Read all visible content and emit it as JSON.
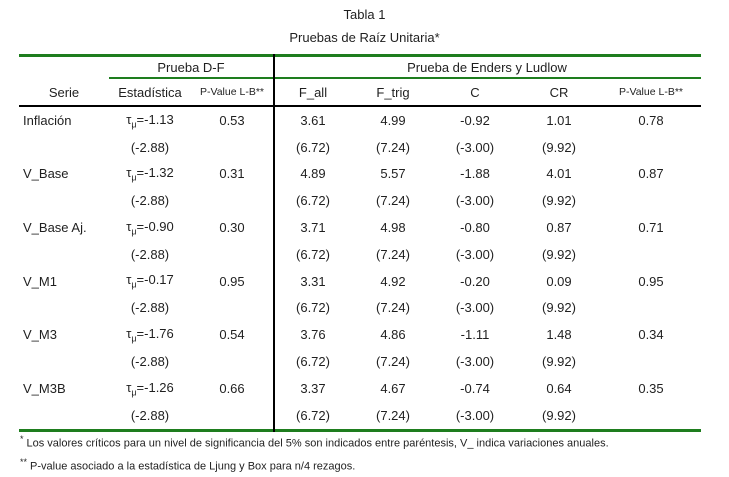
{
  "title": "Tabla 1",
  "subtitle": "Pruebas de Raíz Unitaria*",
  "labels": {
    "tau": "τ",
    "mu": "μ"
  },
  "header": {
    "serie": "Serie",
    "group_df": "Prueba D-F",
    "group_el": "Prueba de Enders y Ludlow",
    "estadistica": "Estadística",
    "pvalue_lb_df": "P-Value L-B**",
    "f_all": "F_all",
    "f_trig": "F_trig",
    "c": "C",
    "cr": "CR",
    "pvalue_lb_el": "P-Value L-B**"
  },
  "table": {
    "rows": [
      {
        "serie": "Inflación",
        "stat": "=-1.13",
        "pvalue_lb_df": "0.53",
        "f_all": "3.61",
        "f_trig": "4.99",
        "c": "-0.92",
        "cr": "1.01",
        "pvalue_lb_el": "0.78",
        "crit_stat": "(-2.88)",
        "crit_f_all": "(6.72)",
        "crit_f_trig": "(7.24)",
        "crit_c": "(-3.00)",
        "crit_cr": "(9.92)"
      },
      {
        "serie": "V_Base",
        "stat": "=-1.32",
        "pvalue_lb_df": "0.31",
        "f_all": "4.89",
        "f_trig": "5.57",
        "c": "-1.88",
        "cr": "4.01",
        "pvalue_lb_el": "0.87",
        "crit_stat": "(-2.88)",
        "crit_f_all": "(6.72)",
        "crit_f_trig": "(7.24)",
        "crit_c": "(-3.00)",
        "crit_cr": "(9.92)"
      },
      {
        "serie": "V_Base Aj.",
        "stat": "=-0.90",
        "pvalue_lb_df": "0.30",
        "f_all": "3.71",
        "f_trig": "4.98",
        "c": "-0.80",
        "cr": "0.87",
        "pvalue_lb_el": "0.71",
        "crit_stat": "(-2.88)",
        "crit_f_all": "(6.72)",
        "crit_f_trig": "(7.24)",
        "crit_c": "(-3.00)",
        "crit_cr": "(9.92)"
      },
      {
        "serie": "V_M1",
        "stat": "=-0.17",
        "pvalue_lb_df": "0.95",
        "f_all": "3.31",
        "f_trig": "4.92",
        "c": "-0.20",
        "cr": "0.09",
        "pvalue_lb_el": "0.95",
        "crit_stat": "(-2.88)",
        "crit_f_all": "(6.72)",
        "crit_f_trig": "(7.24)",
        "crit_c": "(-3.00)",
        "crit_cr": "(9.92)"
      },
      {
        "serie": "V_M3",
        "stat": "=-1.76",
        "pvalue_lb_df": "0.54",
        "f_all": "3.76",
        "f_trig": "4.86",
        "c": "-1.11",
        "cr": "1.48",
        "pvalue_lb_el": "0.34",
        "crit_stat": "(-2.88)",
        "crit_f_all": "(6.72)",
        "crit_f_trig": "(7.24)",
        "crit_c": "(-3.00)",
        "crit_cr": "(9.92)"
      },
      {
        "serie": "V_M3B",
        "stat": "=-1.26",
        "pvalue_lb_df": "0.66",
        "f_all": "3.37",
        "f_trig": "4.67",
        "c": "-0.74",
        "cr": "0.64",
        "pvalue_lb_el": "0.35",
        "crit_stat": "(-2.88)",
        "crit_f_all": "(6.72)",
        "crit_f_trig": "(7.24)",
        "crit_c": "(-3.00)",
        "crit_cr": "(9.92)"
      }
    ]
  },
  "footnotes": [
    {
      "marker": "*",
      "text": "Los valores críticos para un nivel de significancia del 5% son indicados entre paréntesis, V_ indica variaciones anuales."
    },
    {
      "marker": "**",
      "text": "P-value asociado a la estadística de Ljung y Box para n/4 rezagos."
    }
  ],
  "colors": {
    "rule_green": "#1e7d1e",
    "rule_black": "#000000",
    "text": "#1f1f1f"
  }
}
